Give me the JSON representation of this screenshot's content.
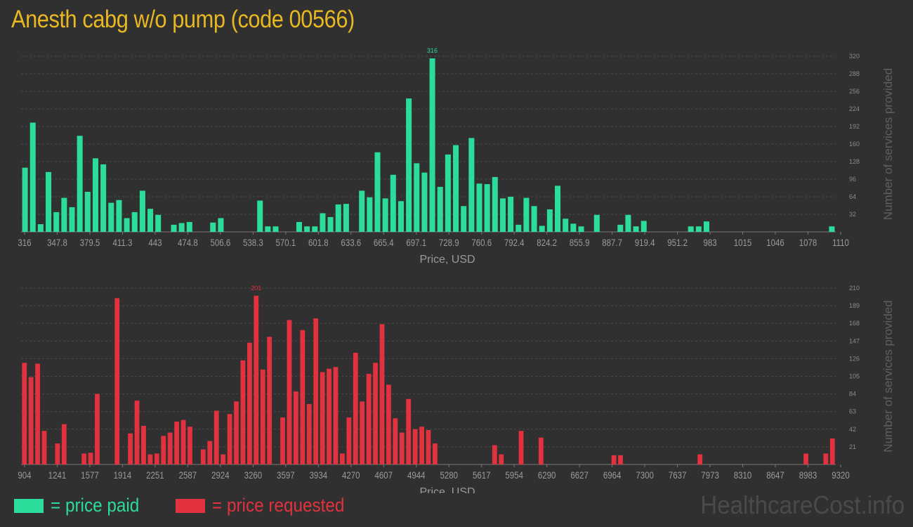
{
  "title": "Anesth cabg w/o pump (code 00566)",
  "legend": {
    "paid_label": "= price paid",
    "requested_label": "= price requested"
  },
  "watermark": "HealthcareCost.info",
  "colors": {
    "paid": "#2bdc9b",
    "requested": "#e2313f",
    "title": "#e8b822"
  },
  "chart_data": [
    {
      "id": "paid",
      "type": "bar",
      "color": "#2bdc9b",
      "xlabel": "Price, USD",
      "ylabel": "Number of services provided",
      "ylim": [
        0,
        320
      ],
      "yticks": [
        32,
        64,
        96,
        128,
        160,
        192,
        224,
        256,
        288,
        320
      ],
      "xtick_labels": [
        "316",
        "347.8",
        "379.5",
        "411.3",
        "443",
        "474.8",
        "506.6",
        "538.3",
        "570.1",
        "601.8",
        "633.6",
        "665.4",
        "697.1",
        "728.9",
        "760.6",
        "792.4",
        "824.2",
        "855.9",
        "887.7",
        "919.4",
        "951.2",
        "983",
        "1015",
        "1046",
        "1078",
        "1110"
      ],
      "peak_label": "316",
      "values": [
        117,
        199,
        14,
        109,
        36,
        62,
        45,
        175,
        73,
        134,
        123,
        53,
        58,
        25,
        36,
        75,
        42,
        31,
        0,
        13,
        16,
        18,
        0,
        0,
        17,
        25,
        0,
        0,
        0,
        0,
        57,
        10,
        10,
        0,
        0,
        18,
        10,
        10,
        34,
        27,
        50,
        51,
        0,
        75,
        63,
        145,
        61,
        104,
        56,
        243,
        125,
        108,
        316,
        82,
        141,
        158,
        47,
        171,
        88,
        87,
        100,
        61,
        64,
        13,
        62,
        47,
        11,
        41,
        84,
        24,
        15,
        10,
        0,
        31,
        0,
        0,
        13,
        31,
        10,
        20,
        0,
        0,
        0,
        0,
        0,
        10,
        10,
        19,
        0,
        0,
        0,
        0,
        0,
        0,
        0,
        0,
        0,
        0,
        0,
        0,
        0,
        0,
        0,
        10
      ]
    },
    {
      "id": "requested",
      "type": "bar",
      "color": "#e2313f",
      "xlabel": "Price, USD",
      "ylabel": "Number of services provided",
      "ylim": [
        0,
        210
      ],
      "yticks": [
        21,
        42,
        63,
        84,
        105,
        126,
        147,
        168,
        189,
        210
      ],
      "xtick_labels": [
        "904",
        "1241",
        "1577",
        "1914",
        "2251",
        "2587",
        "2924",
        "3260",
        "3597",
        "3934",
        "4270",
        "4607",
        "4944",
        "5280",
        "5617",
        "5954",
        "6290",
        "6627",
        "6964",
        "7300",
        "7637",
        "7973",
        "8310",
        "8647",
        "8983",
        "9320"
      ],
      "peak_label": "201",
      "values": [
        121,
        104,
        120,
        40,
        0,
        25,
        48,
        0,
        0,
        13,
        14,
        84,
        0,
        0,
        198,
        0,
        37,
        76,
        46,
        12,
        13,
        34,
        38,
        51,
        53,
        45,
        0,
        18,
        28,
        64,
        12,
        60,
        75,
        124,
        145,
        201,
        113,
        152,
        0,
        56,
        172,
        87,
        160,
        72,
        174,
        110,
        114,
        116,
        13,
        56,
        133,
        75,
        108,
        121,
        167,
        95,
        55,
        38,
        78,
        42,
        45,
        41,
        25,
        0,
        0,
        0,
        0,
        0,
        0,
        0,
        0,
        23,
        12,
        0,
        0,
        40,
        0,
        0,
        32,
        0,
        0,
        0,
        0,
        0,
        0,
        0,
        0,
        0,
        0,
        11,
        11,
        0,
        0,
        0,
        0,
        0,
        0,
        0,
        0,
        0,
        0,
        0,
        12,
        0,
        0,
        0,
        0,
        0,
        0,
        0,
        0,
        0,
        0,
        0,
        0,
        0,
        0,
        0,
        13,
        0,
        0,
        13,
        31
      ]
    }
  ]
}
